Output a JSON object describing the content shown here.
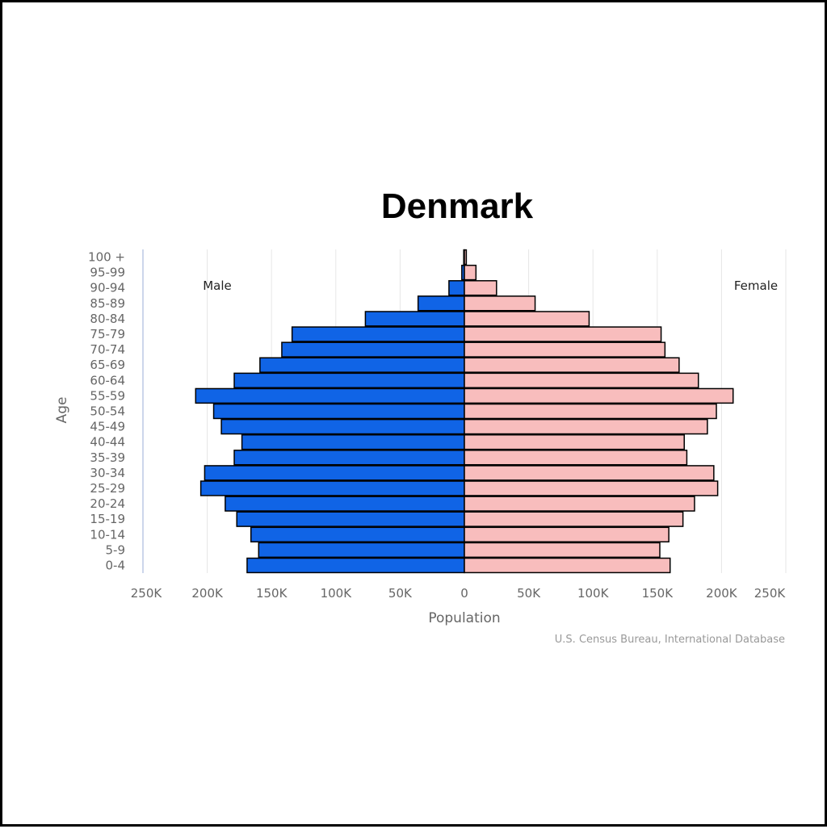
{
  "chart_data": {
    "type": "bar",
    "orientation": "horizontal",
    "layout": "population-pyramid",
    "title": "Denmark",
    "xlabel": "Population",
    "ylabel": "Age",
    "xlim": [
      -250000,
      250000
    ],
    "x_ticks": [
      -250000,
      -200000,
      -150000,
      -100000,
      -50000,
      0,
      50000,
      100000,
      150000,
      200000,
      250000
    ],
    "x_tick_labels": [
      "250K",
      "200K",
      "150K",
      "100K",
      "50K",
      "0",
      "50K",
      "100K",
      "150K",
      "200K",
      "250K"
    ],
    "categories": [
      "100 +",
      "95-99",
      "90-94",
      "85-89",
      "80-84",
      "75-79",
      "70-74",
      "65-69",
      "60-64",
      "55-59",
      "50-54",
      "45-49",
      "40-44",
      "35-39",
      "30-34",
      "25-29",
      "20-24",
      "15-19",
      "10-14",
      "5-9",
      "0-4"
    ],
    "series": [
      {
        "name": "Male",
        "color": "#1064e6",
        "values": [
          500,
          2000,
          12000,
          36000,
          77000,
          134000,
          142000,
          159000,
          179000,
          209000,
          195000,
          189000,
          173000,
          179000,
          202000,
          205000,
          186000,
          177000,
          166000,
          160000,
          169000
        ]
      },
      {
        "name": "Female",
        "color": "#f8bdbd",
        "values": [
          1500,
          9000,
          25000,
          55000,
          97000,
          153000,
          156000,
          167000,
          182000,
          209000,
          196000,
          189000,
          171000,
          173000,
          194000,
          197000,
          179000,
          170000,
          159000,
          152000,
          160000
        ]
      }
    ],
    "grid": true,
    "bar_edge_color": "#000000",
    "source": "U.S. Census Bureau, International Database"
  }
}
